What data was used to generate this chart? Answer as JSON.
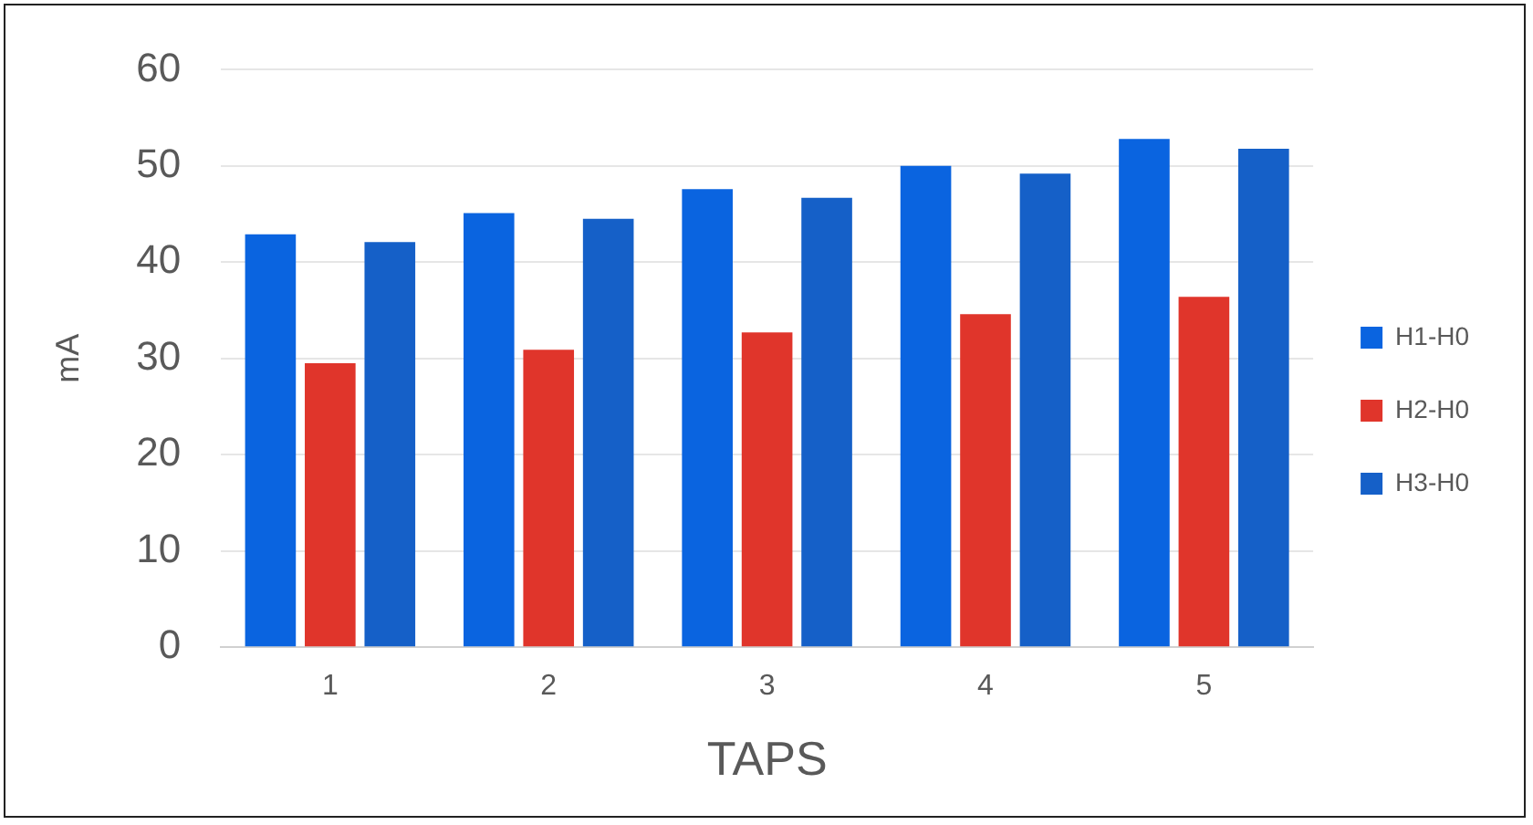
{
  "chart_data": {
    "type": "bar",
    "xlabel": "TAPS",
    "ylabel": "mA",
    "categories": [
      "1",
      "2",
      "3",
      "4",
      "5"
    ],
    "series": [
      {
        "name": "H1-H0",
        "color": "#0a64e0",
        "values": [
          42.9,
          45.1,
          47.6,
          50.0,
          52.8
        ]
      },
      {
        "name": "H2-H0",
        "color": "#e0352b",
        "values": [
          29.5,
          30.9,
          32.7,
          34.6,
          36.4
        ]
      },
      {
        "name": "H3-H0",
        "color": "#1560c8",
        "values": [
          42.1,
          44.5,
          46.7,
          49.2,
          51.8
        ]
      }
    ],
    "ylim": [
      0,
      60
    ],
    "yticks": [
      0,
      10,
      20,
      30,
      40,
      50,
      60
    ],
    "grid": "y",
    "legend": "right"
  }
}
